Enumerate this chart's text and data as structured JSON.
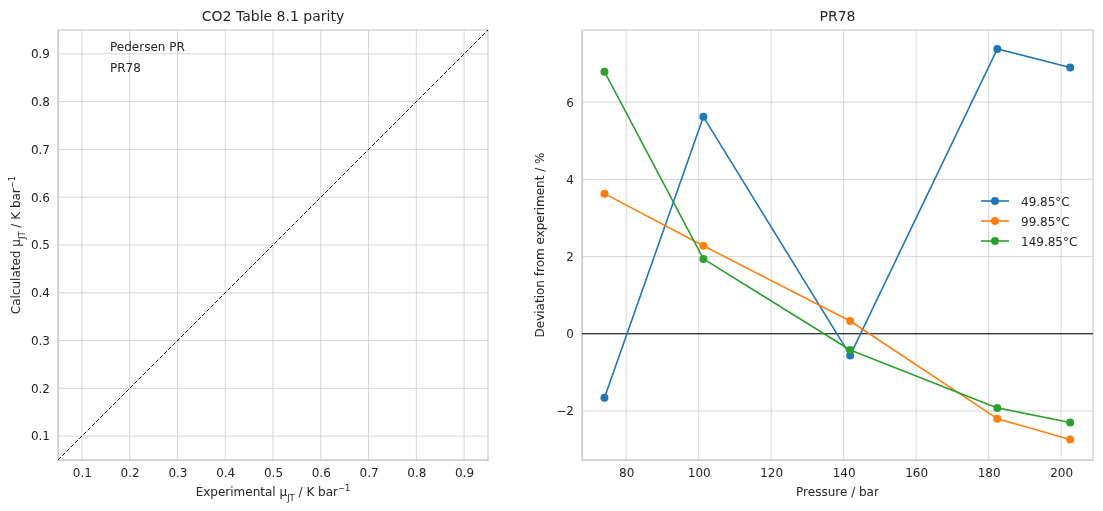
{
  "chart_data": [
    {
      "type": "line",
      "title": "CO2 Table 8.1 parity",
      "xlabel": "Experimental μ$_{JT}$ / K bar$^{−1}$",
      "ylabel": "Calculated μ$_{JT}$ / K bar$^{−1}$",
      "xlim": [
        0.05,
        0.95
      ],
      "ylim": [
        0.05,
        0.95
      ],
      "xticks": [
        0.1,
        0.2,
        0.3,
        0.4,
        0.5,
        0.6,
        0.7,
        0.8,
        0.9
      ],
      "yticks": [
        0.1,
        0.2,
        0.3,
        0.4,
        0.5,
        0.6,
        0.7,
        0.8,
        0.9
      ],
      "grid": true,
      "annotations": [
        "Pedersen PR",
        "PR78"
      ],
      "series": [
        {
          "x": [
            0.05,
            0.95
          ],
          "values": [
            0.05,
            0.95
          ],
          "color": "#000000",
          "line_style": "dashed",
          "marker": "none"
        }
      ]
    },
    {
      "type": "line",
      "title": "PR78",
      "xlabel": "Pressure / bar",
      "ylabel": "Deviation from experiment / %",
      "xlim": [
        67.8,
        208.8
      ],
      "ylim": [
        -3.27,
        7.87
      ],
      "xticks": [
        80,
        100,
        120,
        140,
        160,
        180,
        200
      ],
      "yticks": [
        -2,
        0,
        2,
        4,
        6
      ],
      "grid": true,
      "legend": "right",
      "marker": "circle",
      "x": [
        74,
        101.3,
        141.8,
        182.4,
        202.5
      ],
      "ref_lines": [
        {
          "axis": "y",
          "value": 0,
          "color": "#000000"
        }
      ],
      "series": [
        {
          "name": "49.85°C",
          "color": "#1f77b4",
          "values": [
            -1.66,
            5.62,
            -0.56,
            7.38,
            6.9
          ]
        },
        {
          "name": "99.85°C",
          "color": "#ff7f0e",
          "values": [
            3.63,
            2.28,
            0.33,
            -2.2,
            -2.74
          ]
        },
        {
          "name": "149.85°C",
          "color": "#2ca02c",
          "values": [
            6.79,
            1.94,
            -0.42,
            -1.92,
            -2.3
          ]
        }
      ]
    }
  ]
}
